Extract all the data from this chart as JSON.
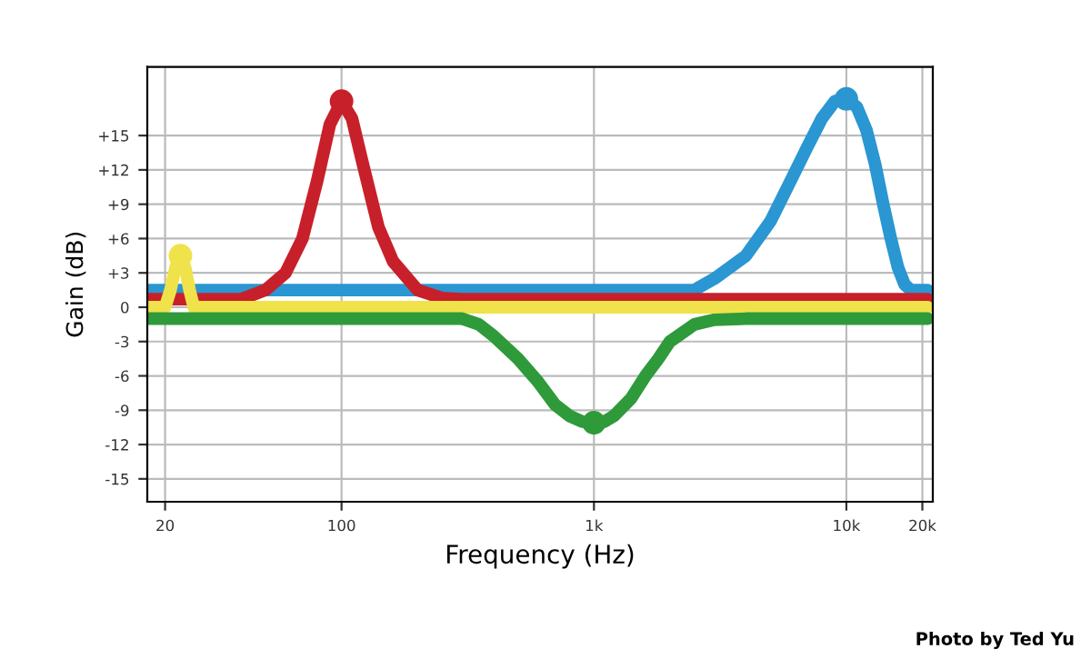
{
  "chart_data": {
    "type": "line",
    "xlabel": "Frequency (Hz)",
    "ylabel": "Gain (dB)",
    "log": "x",
    "xlim": [
      17,
      22000
    ],
    "xticks": [
      20,
      100,
      {
        "value": 1000,
        "label": "1k"
      },
      {
        "value": 10000,
        "label": "10k"
      },
      {
        "value": 20000,
        "label": "20k"
      }
    ],
    "ylim": [
      -17,
      21
    ],
    "yticks": [
      {
        "value": 15,
        "label": "+15"
      },
      {
        "value": 12,
        "label": "+12"
      },
      {
        "value": 9,
        "label": "+9"
      },
      {
        "value": 6,
        "label": "+6"
      },
      {
        "value": 3,
        "label": "+3"
      },
      0,
      -3,
      -6,
      -9,
      -12,
      -15
    ],
    "grid": true,
    "line_style": "solid",
    "marker": "none",
    "series": [
      {
        "color": "#2a96d2",
        "x": [
          17,
          2500,
          3000,
          4000,
          5000,
          6000,
          7000,
          8000,
          9000,
          10000,
          11000,
          12000,
          13000,
          14000,
          15000,
          16000,
          17000,
          18000,
          21000
        ],
        "values": [
          1.5,
          1.5,
          2.5,
          4.5,
          7.5,
          11,
          14,
          16.5,
          18,
          18.2,
          17.5,
          15.5,
          12.5,
          9,
          6,
          3.5,
          2,
          1.5,
          1.5
        ]
      },
      {
        "color": "#c8202a",
        "x": [
          17,
          40,
          50,
          60,
          70,
          80,
          90,
          100,
          110,
          120,
          140,
          160,
          200,
          250,
          300,
          21000
        ],
        "values": [
          0.7,
          0.7,
          1.5,
          3,
          6,
          11,
          16,
          18,
          16.5,
          13,
          7,
          4,
          1.5,
          0.8,
          0.7,
          0.7
        ]
      },
      {
        "color": "#f0e24a",
        "x": [
          17,
          20,
          21,
          22,
          23,
          24,
          25,
          26,
          21000
        ],
        "values": [
          0,
          0,
          1.5,
          3.5,
          4.5,
          3.5,
          1.5,
          0,
          0
        ]
      },
      {
        "color": "#2e9a3a",
        "x": [
          17,
          300,
          350,
          400,
          500,
          600,
          700,
          800,
          900,
          1000,
          1100,
          1200,
          1400,
          1600,
          1800,
          2000,
          2500,
          3000,
          4000,
          21000
        ],
        "values": [
          -1,
          -1,
          -1.5,
          -2.5,
          -4.5,
          -6.5,
          -8.5,
          -9.5,
          -10,
          -10.1,
          -10,
          -9.5,
          -8,
          -6,
          -4.5,
          -3,
          -1.5,
          -1.1,
          -1,
          -1
        ]
      },
      {
        "type": "scatter",
        "marker": "circle",
        "x": [
          23,
          100,
          1000,
          10000
        ],
        "values": [
          4.5,
          18,
          -10.1,
          18.2
        ],
        "colors": [
          "#f0e24a",
          "#c8202a",
          "#2e9a3a",
          "#2a96d2"
        ]
      }
    ],
    "annotations": [
      "Photo by Ted Yu"
    ]
  }
}
